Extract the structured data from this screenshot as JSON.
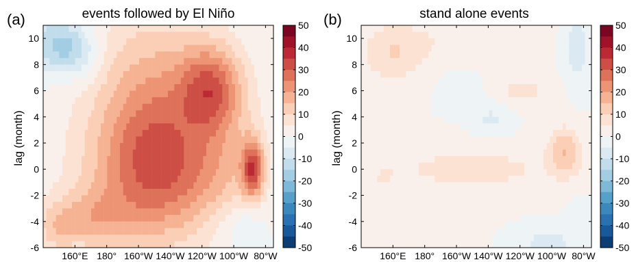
{
  "colorscale": {
    "low": "#053061",
    "mid": "#f7f7f7",
    "high": "#67001f",
    "stops": [
      "#053061",
      "#2166ac",
      "#4393c3",
      "#92c5de",
      "#d1e5f0",
      "#f7f7f7",
      "#fddbc7",
      "#f4a582",
      "#d6604d",
      "#b2182b",
      "#67001f"
    ],
    "levels_step": 5
  },
  "chart_data": [
    {
      "type": "heatmap",
      "panel_label": "(a)",
      "title": "events followed by El Niño",
      "xlabel": "",
      "ylabel": "lag (month)",
      "x_tick_labels": [
        "160°E",
        "180°",
        "160°W",
        "140°W",
        "120°W",
        "100°W",
        "80°W"
      ],
      "x_tick_values": [
        160,
        180,
        200,
        220,
        240,
        260,
        280
      ],
      "xlim": [
        140,
        285
      ],
      "y_ticks": [
        -6,
        -4,
        -2,
        0,
        2,
        4,
        6,
        8,
        10
      ],
      "ylim": [
        -6,
        11
      ],
      "colorbar": {
        "ticks": [
          50,
          40,
          30,
          20,
          10,
          0,
          -10,
          -20,
          -30,
          -40,
          -50
        ],
        "range": [
          -50,
          50
        ]
      },
      "grid": false,
      "features": [
        {
          "x": 147,
          "y": 9.6,
          "sx": 10,
          "sy": 1.6,
          "amp": -14
        },
        {
          "x": 158,
          "y": 9.2,
          "sx": 8,
          "sy": 1.2,
          "amp": -8
        },
        {
          "x": 168,
          "y": 8.6,
          "sx": 8,
          "sy": 1.6,
          "amp": -6
        },
        {
          "x": 246,
          "y": 6.3,
          "sx": 14,
          "sy": 2.3,
          "amp": 24
        },
        {
          "x": 210,
          "y": 4.2,
          "sx": 26,
          "sy": 5.5,
          "amp": 18
        },
        {
          "x": 218,
          "y": -0.6,
          "sx": 26,
          "sy": 3.2,
          "amp": 14
        },
        {
          "x": 195,
          "y": 0,
          "sx": 30,
          "sy": 5,
          "amp": 8
        },
        {
          "x": 255,
          "y": 0.5,
          "sx": 16,
          "sy": 4,
          "amp": 8
        },
        {
          "x": 272,
          "y": 0,
          "sx": 5,
          "sy": 1.6,
          "amp": 30
        },
        {
          "x": 168,
          "y": -3.8,
          "sx": 18,
          "sy": 1.6,
          "amp": 12
        },
        {
          "x": 148,
          "y": -4.6,
          "sx": 8,
          "sy": 1.3,
          "amp": 8
        },
        {
          "x": 268,
          "y": -4.6,
          "sx": 8,
          "sy": 1.6,
          "amp": -7
        },
        {
          "x": 252,
          "y": -4.2,
          "sx": 10,
          "sy": 1.5,
          "amp": -4
        }
      ]
    },
    {
      "type": "heatmap",
      "panel_label": "(b)",
      "title": "stand alone events",
      "xlabel": "",
      "ylabel": "lag (month)",
      "x_tick_labels": [
        "160°E",
        "180°",
        "160°W",
        "140°W",
        "120°W",
        "100°W",
        "80°W"
      ],
      "x_tick_values": [
        160,
        180,
        200,
        220,
        240,
        260,
        280
      ],
      "xlim": [
        140,
        285
      ],
      "y_ticks": [
        -6,
        -4,
        -2,
        0,
        2,
        4,
        6,
        8,
        10
      ],
      "ylim": [
        -6,
        11
      ],
      "colorbar": {
        "ticks": [
          50,
          40,
          30,
          20,
          10,
          0,
          -10,
          -20,
          -30,
          -40,
          -50
        ],
        "range": [
          -50,
          50
        ]
      },
      "grid": false,
      "features": [
        {
          "x": 160,
          "y": 8.8,
          "sx": 14,
          "sy": 1.6,
          "amp": 9
        },
        {
          "x": 200,
          "y": 9.8,
          "sx": 30,
          "sy": 1.4,
          "amp": 4
        },
        {
          "x": 276,
          "y": 9.2,
          "sx": 5,
          "sy": 1.8,
          "amp": -9
        },
        {
          "x": 242,
          "y": 6.0,
          "sx": 12,
          "sy": 0.8,
          "amp": 7
        },
        {
          "x": 202,
          "y": 6.2,
          "sx": 8,
          "sy": 1,
          "amp": -4
        },
        {
          "x": 222,
          "y": 3.8,
          "sx": 8,
          "sy": 0.9,
          "amp": -6
        },
        {
          "x": 268,
          "y": 1.4,
          "sx": 7,
          "sy": 1.3,
          "amp": 14
        },
        {
          "x": 210,
          "y": 0,
          "sx": 40,
          "sy": 1.3,
          "amp": 7
        },
        {
          "x": 150,
          "y": -3.0,
          "sx": 12,
          "sy": 3,
          "amp": 4
        },
        {
          "x": 257,
          "y": -5.8,
          "sx": 10,
          "sy": 0.8,
          "amp": -9
        },
        {
          "x": 277,
          "y": -4.6,
          "sx": 5,
          "sy": 1.4,
          "amp": -4
        },
        {
          "x": 180,
          "y": -5.2,
          "sx": 14,
          "sy": 1.2,
          "amp": 3
        }
      ]
    }
  ]
}
